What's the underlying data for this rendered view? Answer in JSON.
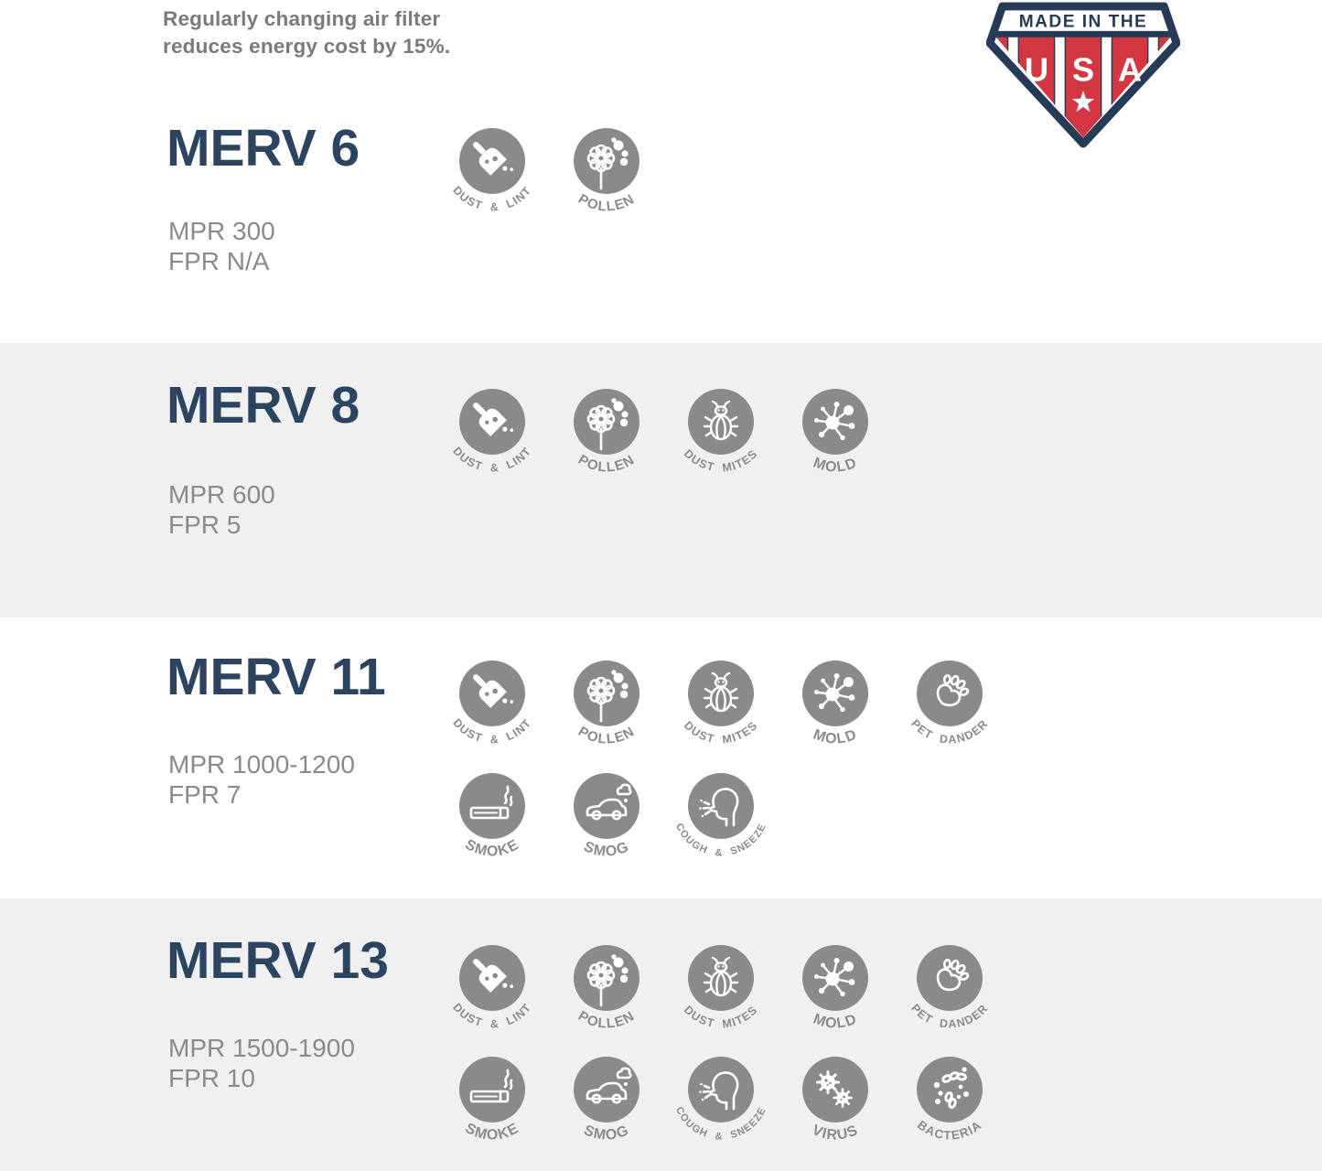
{
  "note": {
    "line1": "Regularly changing air filter",
    "line2": "reduces energy cost by 15%."
  },
  "badge": {
    "top_text": "MADE IN THE",
    "letters": [
      "U",
      "S",
      "A"
    ],
    "star_icon": "star"
  },
  "icon_labels": {
    "dust-lint": "DUST & LINT",
    "pollen": "POLLEN",
    "dust-mites": "DUST MITES",
    "mold": "MOLD",
    "pet-dander": "PET DANDER",
    "smoke": "SMOKE",
    "smog": "SMOG",
    "cough-sneeze": "COUGH & SNEEZE",
    "virus": "VIRUS",
    "bacteria": "BACTERIA"
  },
  "sections": [
    {
      "title": "MERV 6",
      "mpr": "MPR 300",
      "fpr": "FPR N/A",
      "rows": [
        [
          "dust-lint",
          "pollen"
        ]
      ]
    },
    {
      "title": "MERV 8",
      "mpr": "MPR 600",
      "fpr": "FPR 5",
      "rows": [
        [
          "dust-lint",
          "pollen",
          "dust-mites",
          "mold"
        ]
      ]
    },
    {
      "title": "MERV 11",
      "mpr": "MPR 1000-1200",
      "fpr": "FPR 7",
      "rows": [
        [
          "dust-lint",
          "pollen",
          "dust-mites",
          "mold",
          "pet-dander"
        ],
        [
          "smoke",
          "smog",
          "cough-sneeze"
        ]
      ]
    },
    {
      "title": "MERV 13",
      "mpr": "MPR 1500-1900",
      "fpr": "FPR 10",
      "rows": [
        [
          "dust-lint",
          "pollen",
          "dust-mites",
          "mold",
          "pet-dander"
        ],
        [
          "smoke",
          "smog",
          "cough-sneeze",
          "virus",
          "bacteria"
        ]
      ]
    }
  ],
  "colors": {
    "heading_navy": "#2b4560",
    "badge_navy": "#263c56",
    "badge_red": "#d23742",
    "icon_gray": "#8a8a8a",
    "label_gray": "#8b8b8b",
    "band_gray": "#f0f0f0",
    "note_gray": "#7a7a7a"
  }
}
